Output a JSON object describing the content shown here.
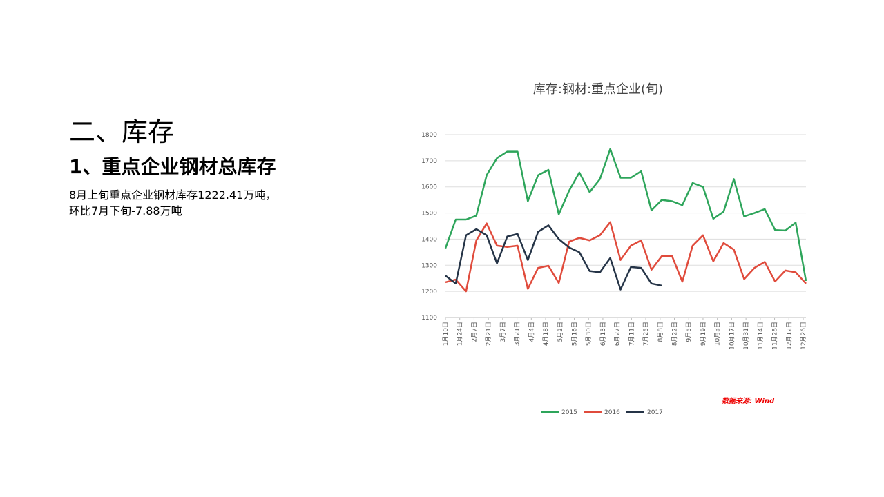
{
  "slide": {
    "heading": "二、库存",
    "subheading": "1、重点企业钢材总库存",
    "body": [
      "8月上旬重点企业钢材库存1222.41万吨，",
      "环比7月下旬-7.88万吨"
    ]
  },
  "chart_data": {
    "type": "line",
    "title": "库存:钢材:重点企业(旬)",
    "source": "数据来源: Wind",
    "x_labels": [
      "1月10日",
      "1月24日",
      "2月7日",
      "2月21日",
      "3月7日",
      "3月21日",
      "4月4日",
      "4月18日",
      "5月2日",
      "5月16日",
      "5月30日",
      "6月13日",
      "6月27日",
      "7月11日",
      "7月25日",
      "8月8日",
      "8月22日",
      "9月5日",
      "9月19日",
      "10月3日",
      "10月17日",
      "10月31日",
      "11月14日",
      "11月28日",
      "12月12日",
      "12月26日"
    ],
    "ylim": [
      1100,
      1800
    ],
    "yticks": [
      1100,
      1200,
      1300,
      1400,
      1500,
      1600,
      1700,
      1800
    ],
    "grid": true,
    "legend": "bottom",
    "series": [
      {
        "name": "2015",
        "color": "#2ea55b",
        "values": [
          1365,
          1475,
          1475,
          1490,
          1645,
          1710,
          1735,
          1735,
          1545,
          1645,
          1665,
          1495,
          1585,
          1655,
          1580,
          1630,
          1745,
          1635,
          1635,
          1660,
          1510,
          1550,
          1545,
          1530,
          1615,
          1600,
          1478,
          1505,
          1630,
          1487,
          1500,
          1515,
          1435,
          1433,
          1463,
          1240
        ]
      },
      {
        "name": "2016",
        "color": "#e04b3c",
        "values": [
          1235,
          1245,
          1200,
          1395,
          1460,
          1375,
          1370,
          1375,
          1210,
          1290,
          1298,
          1232,
          1390,
          1405,
          1395,
          1415,
          1465,
          1320,
          1375,
          1395,
          1283,
          1335,
          1335,
          1237,
          1375,
          1415,
          1315,
          1385,
          1360,
          1247,
          1290,
          1313,
          1238,
          1280,
          1273,
          1230
        ]
      },
      {
        "name": "2017",
        "color": "#253447",
        "values": [
          1260,
          1230,
          1415,
          1438,
          1415,
          1307,
          1410,
          1420,
          1320,
          1428,
          1453,
          1400,
          1368,
          1350,
          1278,
          1273,
          1328,
          1207,
          1293,
          1290,
          1230,
          1222,
          null,
          null,
          null,
          null,
          null,
          null,
          null,
          null,
          null,
          null,
          null,
          null,
          null,
          null
        ]
      }
    ]
  }
}
